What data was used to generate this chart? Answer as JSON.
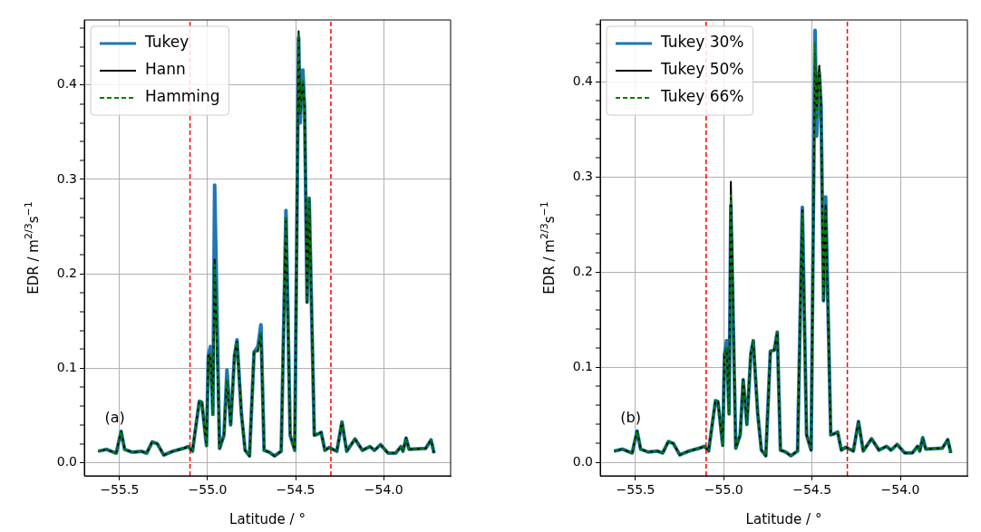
{
  "chart_data": [
    {
      "type": "line",
      "xlabel": "Latitude / °",
      "ylabel": "EDR / m$^{2/3}$s$^{−1}$",
      "annotations": [
        "(a)"
      ],
      "x": [
        -55.621,
        -55.574,
        -55.548,
        -55.519,
        -55.491,
        -55.471,
        -55.428,
        -55.377,
        -55.346,
        -55.314,
        -55.286,
        -55.249,
        -55.197,
        -55.138,
        -55.109,
        -55.086,
        -55.047,
        -55.033,
        -55.006,
        -54.996,
        -54.984,
        -54.97,
        -54.96,
        -54.932,
        -54.907,
        -54.89,
        -54.869,
        -54.847,
        -54.833,
        -54.808,
        -54.787,
        -54.762,
        -54.736,
        -54.714,
        -54.697,
        -54.679,
        -54.65,
        -54.62,
        -54.582,
        -54.555,
        -54.531,
        -54.505,
        -54.483,
        -54.474,
        -54.459,
        -54.449,
        -54.435,
        -54.423,
        -54.394,
        -54.377,
        -54.355,
        -54.334,
        -54.309,
        -54.266,
        -54.237,
        -54.21,
        -54.163,
        -54.121,
        -54.078,
        -54.052,
        -54.018,
        -53.975,
        -53.932,
        -53.902,
        -53.89,
        -53.873,
        -53.856,
        -53.762,
        -53.731,
        -53.714
      ],
      "series": [
        {
          "name": "Tukey",
          "color": "#1f77b4",
          "values": [
            0.012,
            0.014,
            0.012,
            0.01,
            0.033,
            0.014,
            0.011,
            0.012,
            0.01,
            0.022,
            0.02,
            0.008,
            0.012,
            0.015,
            0.017,
            0.012,
            0.065,
            0.064,
            0.018,
            0.113,
            0.123,
            0.051,
            0.294,
            0.015,
            0.029,
            0.098,
            0.04,
            0.114,
            0.13,
            0.052,
            0.013,
            0.007,
            0.117,
            0.123,
            0.146,
            0.013,
            0.011,
            0.007,
            0.012,
            0.267,
            0.029,
            0.013,
            0.45,
            0.36,
            0.416,
            0.375,
            0.17,
            0.28,
            0.029,
            0.03,
            0.032,
            0.013,
            0.016,
            0.012,
            0.043,
            0.012,
            0.025,
            0.013,
            0.017,
            0.013,
            0.019,
            0.01,
            0.01,
            0.017,
            0.012,
            0.026,
            0.014,
            0.015,
            0.024,
            0.01
          ]
        },
        {
          "name": "Hann",
          "color": "#000000",
          "values": [
            0.012,
            0.014,
            0.012,
            0.01,
            0.033,
            0.014,
            0.011,
            0.012,
            0.01,
            0.022,
            0.02,
            0.008,
            0.012,
            0.015,
            0.017,
            0.012,
            0.065,
            0.064,
            0.018,
            0.113,
            0.115,
            0.051,
            0.215,
            0.015,
            0.029,
            0.087,
            0.04,
            0.114,
            0.128,
            0.052,
            0.013,
            0.007,
            0.117,
            0.118,
            0.137,
            0.013,
            0.011,
            0.007,
            0.012,
            0.259,
            0.029,
            0.013,
            0.457,
            0.37,
            0.404,
            0.375,
            0.17,
            0.28,
            0.029,
            0.03,
            0.032,
            0.013,
            0.016,
            0.012,
            0.043,
            0.012,
            0.025,
            0.013,
            0.017,
            0.013,
            0.019,
            0.01,
            0.01,
            0.017,
            0.012,
            0.026,
            0.014,
            0.015,
            0.024,
            0.01
          ]
        },
        {
          "name": "Hamming",
          "color": "#008000",
          "line_style": "dashed",
          "values": [
            0.012,
            0.014,
            0.012,
            0.01,
            0.033,
            0.014,
            0.011,
            0.012,
            0.01,
            0.022,
            0.02,
            0.008,
            0.012,
            0.015,
            0.017,
            0.012,
            0.065,
            0.064,
            0.018,
            0.113,
            0.115,
            0.051,
            0.21,
            0.015,
            0.029,
            0.087,
            0.04,
            0.114,
            0.128,
            0.052,
            0.013,
            0.007,
            0.117,
            0.118,
            0.137,
            0.013,
            0.011,
            0.007,
            0.012,
            0.259,
            0.029,
            0.013,
            0.455,
            0.37,
            0.404,
            0.375,
            0.17,
            0.28,
            0.029,
            0.03,
            0.032,
            0.013,
            0.016,
            0.012,
            0.043,
            0.012,
            0.025,
            0.013,
            0.017,
            0.013,
            0.019,
            0.01,
            0.01,
            0.017,
            0.012,
            0.026,
            0.014,
            0.015,
            0.024,
            0.01
          ]
        }
      ],
      "xlim": [
        -55.7,
        -53.62
      ],
      "xticks": [
        {
          "value": -55.5,
          "label": "−55.5"
        },
        {
          "value": -55.0,
          "label": "−55.0"
        },
        {
          "value": -54.5,
          "label": "−54.5"
        },
        {
          "value": -54.0,
          "label": "−54.0"
        }
      ],
      "ylim": [
        -0.014,
        0.469
      ],
      "yticks": [
        {
          "value": 0,
          "label": "0.0"
        },
        {
          "value": 0.02,
          "label": null
        },
        {
          "value": 0.04,
          "label": null
        },
        {
          "value": 0.06,
          "label": null
        },
        {
          "value": 0.08,
          "label": null
        },
        {
          "value": 0.1,
          "label": "0.1"
        },
        {
          "value": 0.12,
          "label": null
        },
        {
          "value": 0.14,
          "label": null
        },
        {
          "value": 0.16,
          "label": null
        },
        {
          "value": 0.18,
          "label": null
        },
        {
          "value": 0.2,
          "label": "0.2"
        },
        {
          "value": 0.22,
          "label": null
        },
        {
          "value": 0.24,
          "label": null
        },
        {
          "value": 0.26,
          "label": null
        },
        {
          "value": 0.28,
          "label": null
        },
        {
          "value": 0.3,
          "label": "0.3"
        },
        {
          "value": 0.32,
          "label": null
        },
        {
          "value": 0.34,
          "label": null
        },
        {
          "value": 0.36,
          "label": null
        },
        {
          "value": 0.38,
          "label": null
        },
        {
          "value": 0.4,
          "label": "0.4"
        },
        {
          "value": 0.42,
          "label": null
        },
        {
          "value": 0.44,
          "label": null
        },
        {
          "value": 0.46,
          "label": null
        }
      ],
      "ref_lines": [
        {
          "axis": "x",
          "value": -55.1,
          "color": "#ff0000",
          "line_style": "dashed"
        },
        {
          "axis": "x",
          "value": -54.3,
          "color": "#ff0000",
          "line_style": "dashed"
        }
      ],
      "grid": true,
      "legend": "top left"
    },
    {
      "type": "line",
      "xlabel": "Latitude / °",
      "ylabel": "EDR / m$^{2/3}$s$^{−1}$",
      "annotations": [
        "(b)"
      ],
      "x": [
        -55.621,
        -55.574,
        -55.548,
        -55.519,
        -55.491,
        -55.471,
        -55.428,
        -55.377,
        -55.346,
        -55.314,
        -55.286,
        -55.249,
        -55.197,
        -55.138,
        -55.109,
        -55.086,
        -55.047,
        -55.033,
        -55.006,
        -54.996,
        -54.984,
        -54.97,
        -54.96,
        -54.932,
        -54.907,
        -54.89,
        -54.869,
        -54.847,
        -54.833,
        -54.808,
        -54.787,
        -54.762,
        -54.736,
        -54.714,
        -54.697,
        -54.679,
        -54.65,
        -54.62,
        -54.582,
        -54.555,
        -54.531,
        -54.505,
        -54.483,
        -54.474,
        -54.459,
        -54.449,
        -54.435,
        -54.423,
        -54.394,
        -54.377,
        -54.355,
        -54.334,
        -54.309,
        -54.266,
        -54.237,
        -54.21,
        -54.163,
        -54.121,
        -54.078,
        -54.052,
        -54.018,
        -53.975,
        -53.932,
        -53.902,
        -53.89,
        -53.873,
        -53.856,
        -53.762,
        -53.731,
        -53.714
      ],
      "series": [
        {
          "name": "Tukey 30%",
          "color": "#1f77b4",
          "values": [
            0.012,
            0.014,
            0.012,
            0.01,
            0.033,
            0.014,
            0.011,
            0.012,
            0.01,
            0.022,
            0.02,
            0.008,
            0.012,
            0.015,
            0.017,
            0.012,
            0.065,
            0.064,
            0.018,
            0.113,
            0.128,
            0.051,
            0.27,
            0.015,
            0.029,
            0.087,
            0.04,
            0.114,
            0.128,
            0.052,
            0.013,
            0.007,
            0.117,
            0.118,
            0.137,
            0.013,
            0.011,
            0.007,
            0.012,
            0.268,
            0.029,
            0.013,
            0.454,
            0.343,
            0.41,
            0.375,
            0.17,
            0.279,
            0.029,
            0.03,
            0.032,
            0.013,
            0.016,
            0.012,
            0.043,
            0.012,
            0.025,
            0.013,
            0.017,
            0.013,
            0.019,
            0.01,
            0.01,
            0.017,
            0.012,
            0.026,
            0.014,
            0.015,
            0.024,
            0.01
          ]
        },
        {
          "name": "Tukey 50%",
          "color": "#000000",
          "values": [
            0.012,
            0.014,
            0.012,
            0.01,
            0.033,
            0.014,
            0.011,
            0.012,
            0.01,
            0.022,
            0.02,
            0.008,
            0.012,
            0.015,
            0.017,
            0.012,
            0.065,
            0.064,
            0.018,
            0.113,
            0.12,
            0.051,
            0.295,
            0.015,
            0.029,
            0.087,
            0.04,
            0.114,
            0.128,
            0.052,
            0.013,
            0.007,
            0.117,
            0.118,
            0.137,
            0.013,
            0.011,
            0.007,
            0.012,
            0.265,
            0.029,
            0.013,
            0.43,
            0.37,
            0.417,
            0.375,
            0.17,
            0.27,
            0.029,
            0.03,
            0.032,
            0.013,
            0.016,
            0.012,
            0.043,
            0.012,
            0.025,
            0.013,
            0.017,
            0.013,
            0.019,
            0.01,
            0.01,
            0.017,
            0.012,
            0.026,
            0.014,
            0.015,
            0.024,
            0.01
          ]
        },
        {
          "name": "Tukey 66%",
          "color": "#008000",
          "line_style": "dashed",
          "values": [
            0.012,
            0.014,
            0.012,
            0.01,
            0.033,
            0.014,
            0.011,
            0.012,
            0.01,
            0.022,
            0.02,
            0.008,
            0.012,
            0.015,
            0.017,
            0.012,
            0.065,
            0.064,
            0.018,
            0.113,
            0.12,
            0.051,
            0.281,
            0.015,
            0.029,
            0.087,
            0.04,
            0.114,
            0.128,
            0.052,
            0.013,
            0.007,
            0.117,
            0.118,
            0.137,
            0.013,
            0.011,
            0.007,
            0.012,
            0.262,
            0.029,
            0.013,
            0.441,
            0.36,
            0.41,
            0.375,
            0.17,
            0.265,
            0.029,
            0.03,
            0.032,
            0.013,
            0.016,
            0.012,
            0.043,
            0.012,
            0.025,
            0.013,
            0.017,
            0.013,
            0.019,
            0.01,
            0.01,
            0.017,
            0.012,
            0.026,
            0.014,
            0.015,
            0.024,
            0.01
          ]
        }
      ],
      "xlim": [
        -55.7,
        -53.62
      ],
      "xticks": [
        {
          "value": -55.5,
          "label": "−55.5"
        },
        {
          "value": -55.0,
          "label": "−55.0"
        },
        {
          "value": -54.5,
          "label": "−54.5"
        },
        {
          "value": -54.0,
          "label": "−54.0"
        }
      ],
      "ylim": [
        -0.014,
        0.465
      ],
      "yticks": [
        {
          "value": 0,
          "label": "0.0"
        },
        {
          "value": 0.02,
          "label": null
        },
        {
          "value": 0.04,
          "label": null
        },
        {
          "value": 0.06,
          "label": null
        },
        {
          "value": 0.08,
          "label": null
        },
        {
          "value": 0.1,
          "label": "0.1"
        },
        {
          "value": 0.12,
          "label": null
        },
        {
          "value": 0.14,
          "label": null
        },
        {
          "value": 0.16,
          "label": null
        },
        {
          "value": 0.18,
          "label": null
        },
        {
          "value": 0.2,
          "label": "0.2"
        },
        {
          "value": 0.22,
          "label": null
        },
        {
          "value": 0.24,
          "label": null
        },
        {
          "value": 0.26,
          "label": null
        },
        {
          "value": 0.28,
          "label": null
        },
        {
          "value": 0.3,
          "label": "0.3"
        },
        {
          "value": 0.32,
          "label": null
        },
        {
          "value": 0.34,
          "label": null
        },
        {
          "value": 0.36,
          "label": null
        },
        {
          "value": 0.38,
          "label": null
        },
        {
          "value": 0.4,
          "label": "0.4"
        },
        {
          "value": 0.42,
          "label": null
        },
        {
          "value": 0.44,
          "label": null
        },
        {
          "value": 0.46,
          "label": null
        }
      ],
      "ref_lines": [
        {
          "axis": "x",
          "value": -55.1,
          "color": "#ff0000",
          "line_style": "dashed"
        },
        {
          "axis": "x",
          "value": -54.3,
          "color": "#ff0000",
          "line_style": "dashed"
        }
      ],
      "grid": true,
      "legend": "top left"
    }
  ]
}
